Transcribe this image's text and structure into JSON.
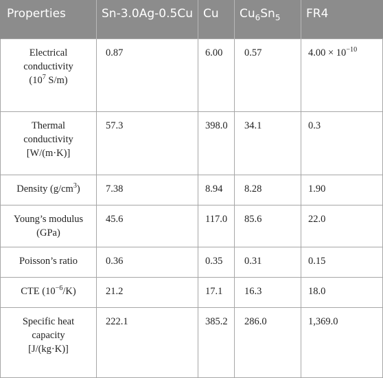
{
  "table": {
    "headers": {
      "properties": "Properties",
      "sac": "Sn-3.0Ag-0.5Cu",
      "cu": "Cu",
      "imc_base": "Cu",
      "imc_sub1": "6",
      "imc_mid": "Sn",
      "imc_sub2": "5",
      "fr4": "FR4"
    },
    "rows": [
      {
        "label_line1": "Electrical",
        "label_line2": "conductivity",
        "label_unit_pre": "(10",
        "label_unit_sup": "7",
        "label_unit_post": " S/m)",
        "sac": "0.87",
        "cu": "6.00",
        "imc": "0.57",
        "fr4_base": "4.00 × 10",
        "fr4_sup": "−10"
      },
      {
        "label_line1": "Thermal",
        "label_line2": "conductivity",
        "label_line3": "[W/(m·K)]",
        "sac": "57.3",
        "cu": "398.0",
        "imc": "34.1",
        "fr4": "0.3"
      },
      {
        "label_pre": "Density (g/cm",
        "label_sup": "3",
        "label_post": ")",
        "sac": "7.38",
        "cu": "8.94",
        "imc": "8.28",
        "fr4": "1.90"
      },
      {
        "label_line1": "Young’s modulus",
        "label_line2": "(GPa)",
        "sac": "45.6",
        "cu": "117.0",
        "imc": "85.6",
        "fr4": "22.0"
      },
      {
        "label": "Poisson’s ratio",
        "sac": "0.36",
        "cu": "0.35",
        "imc": "0.31",
        "fr4": "0.15"
      },
      {
        "label_pre": "CTE (10",
        "label_sup": "−6",
        "label_post": "/K)",
        "sac": "21.2",
        "cu": "17.1",
        "imc": "16.3",
        "fr4": "18.0"
      },
      {
        "label_line1": "Specific heat",
        "label_line2": "capacity",
        "label_line3": "[J/(kg·K)]",
        "sac": "222.1",
        "cu": "385.2",
        "imc": "286.0",
        "fr4": "1,369.0"
      }
    ]
  }
}
